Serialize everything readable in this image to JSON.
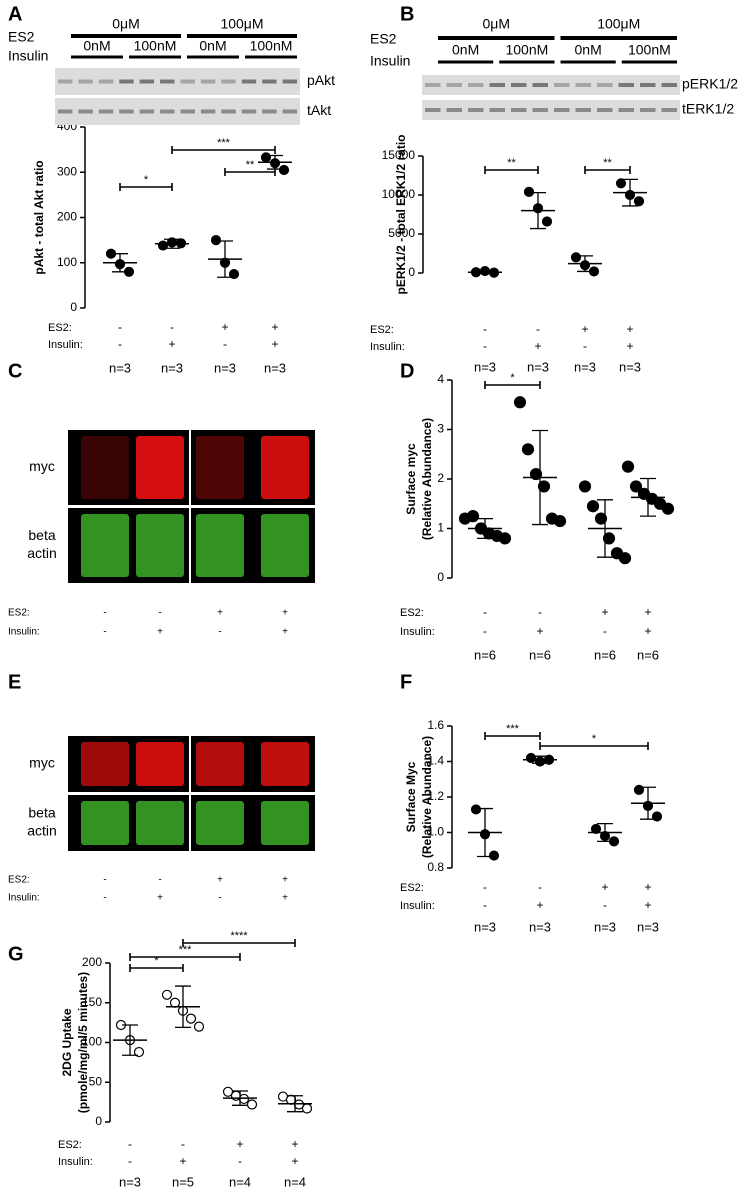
{
  "chart_data": [
    {
      "type": "dotplot",
      "panel": "A",
      "ylabel": [
        "pAkt - total Akt ratio"
      ],
      "marker": "filled",
      "ylim": [
        0,
        400
      ],
      "yticks": [
        0,
        100,
        200,
        300,
        400
      ],
      "groups": [
        {
          "values": [
            120,
            97,
            80
          ],
          "mean": 100,
          "sd": 20
        },
        {
          "values": [
            138,
            145,
            143
          ],
          "mean": 142,
          "sd": 10
        },
        {
          "values": [
            150,
            100,
            75
          ],
          "mean": 108,
          "sd": 40
        },
        {
          "values": [
            333,
            320,
            305
          ],
          "mean": 322,
          "sd": 15
        }
      ],
      "row_labels": [
        "ES2:",
        "Insulin:"
      ],
      "es2": [
        "-",
        "-",
        "+",
        "+"
      ],
      "insulin": [
        "-",
        "+",
        "-",
        "+"
      ],
      "n": [
        "n=3",
        "n=3",
        "n=3",
        "n=3"
      ],
      "significance": [
        {
          "label": "*",
          "from": 0,
          "to": 1
        },
        {
          "label": "***",
          "from": 1,
          "to": 3
        },
        {
          "label": "**",
          "from": 2,
          "to": 3
        }
      ],
      "blot": {
        "labels": [
          "ES2",
          "Insulin"
        ],
        "doses": [
          "0μM",
          "100μM"
        ],
        "insulin_doses": [
          "0nM",
          "100nM",
          "0nM",
          "100nM"
        ],
        "bands": [
          "pAkt",
          "tAkt"
        ]
      }
    },
    {
      "type": "dotplot",
      "panel": "B",
      "ylabel": [
        "pERK1/2 - total ERK1/2 ratio"
      ],
      "marker": "filled",
      "ylim": [
        0,
        15000
      ],
      "yticks": [
        0,
        5000,
        10000,
        15000
      ],
      "groups": [
        {
          "values": [
            100,
            250,
            50
          ],
          "mean": 100,
          "sd": 100
        },
        {
          "values": [
            10400,
            8300,
            6600
          ],
          "mean": 8000,
          "sd": 2300
        },
        {
          "values": [
            2000,
            1000,
            200
          ],
          "mean": 1200,
          "sd": 1000
        },
        {
          "values": [
            11500,
            10000,
            9200
          ],
          "mean": 10300,
          "sd": 1700
        }
      ],
      "row_labels": [
        "ES2:",
        "Insulin:"
      ],
      "es2": [
        "-",
        "-",
        "+",
        "+"
      ],
      "insulin": [
        "-",
        "+",
        "-",
        "+"
      ],
      "n": [
        "n=3",
        "n=3",
        "n=3",
        "n=3"
      ],
      "significance": [
        {
          "label": "**",
          "from": 0,
          "to": 1
        },
        {
          "label": "**",
          "from": 2,
          "to": 3
        }
      ],
      "blot": {
        "labels": [
          "ES2",
          "Insulin"
        ],
        "doses": [
          "0μM",
          "100μM"
        ],
        "insulin_doses": [
          "0nM",
          "100nM",
          "0nM",
          "100nM"
        ],
        "bands": [
          "pERK1/2",
          "tERK1/2"
        ]
      }
    },
    {
      "type": "dotplot",
      "panel": "D",
      "ylabel": [
        "Surface myc",
        "(Relative Abundance)"
      ],
      "marker": "filled",
      "ylim": [
        0,
        4
      ],
      "yticks": [
        0,
        1,
        2,
        3,
        4
      ],
      "groups": [
        {
          "values": [
            1.2,
            1.25,
            1.0,
            0.9,
            0.85,
            0.8
          ],
          "mean": 1.0,
          "sd": 0.2
        },
        {
          "values": [
            3.55,
            2.6,
            2.1,
            1.85,
            1.2,
            1.15
          ],
          "mean": 2.03,
          "sd": 0.95
        },
        {
          "values": [
            1.85,
            1.45,
            1.2,
            0.8,
            0.5,
            0.4
          ],
          "mean": 1.0,
          "sd": 0.58
        },
        {
          "values": [
            2.25,
            1.85,
            1.7,
            1.6,
            1.5,
            1.4
          ],
          "mean": 1.63,
          "sd": 0.38
        }
      ],
      "row_labels": [
        "ES2:",
        "Insulin:"
      ],
      "es2": [
        "-",
        "-",
        "+",
        "+"
      ],
      "insulin": [
        "-",
        "+",
        "-",
        "+"
      ],
      "n": [
        "n=6",
        "n=6",
        "n=6",
        "n=6"
      ],
      "significance": [
        {
          "label": "*",
          "from": 0,
          "to": 1
        }
      ]
    },
    {
      "type": "dotplot",
      "panel": "F",
      "ylabel": [
        "Surface Myc",
        "(Relative Abundance)"
      ],
      "marker": "filled",
      "ylim": [
        0.8,
        1.6
      ],
      "yticks": [
        {
          "value": 0.8,
          "label": "0.8"
        },
        {
          "value": 1.0,
          "label": "1.0"
        },
        {
          "value": 1.2,
          "label": "1.2"
        },
        {
          "value": 1.4,
          "label": "1.4"
        },
        {
          "value": 1.6,
          "label": "1.6"
        }
      ],
      "groups": [
        {
          "values": [
            1.13,
            0.99,
            0.87
          ],
          "mean": 1.0,
          "sd": 0.135
        },
        {
          "values": [
            1.42,
            1.4,
            1.41
          ],
          "mean": 1.41,
          "sd": 0.02
        },
        {
          "values": [
            1.02,
            0.98,
            0.95
          ],
          "mean": 1.0,
          "sd": 0.05
        },
        {
          "values": [
            1.24,
            1.15,
            1.09
          ],
          "mean": 1.165,
          "sd": 0.09
        }
      ],
      "row_labels": [
        "ES2:",
        "Insulin:"
      ],
      "es2": [
        "-",
        "-",
        "+",
        "+"
      ],
      "insulin": [
        "-",
        "+",
        "-",
        "+"
      ],
      "n": [
        "n=3",
        "n=3",
        "n=3",
        "n=3"
      ],
      "significance": [
        {
          "label": "***",
          "from": 0,
          "to": 1
        },
        {
          "label": "*",
          "from": 1,
          "to": 3
        }
      ]
    },
    {
      "type": "dotplot",
      "panel": "G",
      "ylabel": [
        "2DG Uptake",
        "(pmole/mg/ml/5 minutes)"
      ],
      "marker": "open",
      "ylim": [
        0,
        200
      ],
      "yticks": [
        0,
        50,
        100,
        150,
        200
      ],
      "groups": [
        {
          "values": [
            122,
            103,
            88
          ],
          "mean": 103,
          "sd": 19
        },
        {
          "values": [
            160,
            150,
            140,
            130,
            120
          ],
          "mean": 145,
          "sd": 26
        },
        {
          "values": [
            38,
            33,
            29,
            22
          ],
          "mean": 30,
          "sd": 9
        },
        {
          "values": [
            32,
            28,
            22,
            17
          ],
          "mean": 23,
          "sd": 10
        }
      ],
      "row_labels": [
        "ES2:",
        "Insulin:"
      ],
      "es2": [
        "-",
        "-",
        "+",
        "+"
      ],
      "insulin": [
        "-",
        "+",
        "-",
        "+"
      ],
      "n": [
        "n=3",
        "n=5",
        "n=4",
        "n=4"
      ],
      "significance": [
        {
          "label": "*",
          "from": 0,
          "to": 1
        },
        {
          "label": "***",
          "from": 0,
          "to": 2
        },
        {
          "label": "****",
          "from": 1,
          "to": 3
        }
      ]
    }
  ],
  "images": [
    {
      "panel": "C",
      "rows": [
        [
          "myc"
        ],
        [
          "beta",
          "actin"
        ]
      ],
      "row_labels": [
        "ES2:",
        "Insulin:"
      ],
      "es2": [
        "-",
        "-",
        "+",
        "+"
      ],
      "insulin": [
        "-",
        "+",
        "-",
        "+"
      ]
    },
    {
      "panel": "E",
      "rows": [
        [
          "myc"
        ],
        [
          "beta",
          "actin"
        ]
      ],
      "row_labels": [
        "ES2:",
        "Insulin:"
      ],
      "es2": [
        "-",
        "-",
        "+",
        "+"
      ],
      "insulin": [
        "-",
        "+",
        "-",
        "+"
      ]
    }
  ]
}
